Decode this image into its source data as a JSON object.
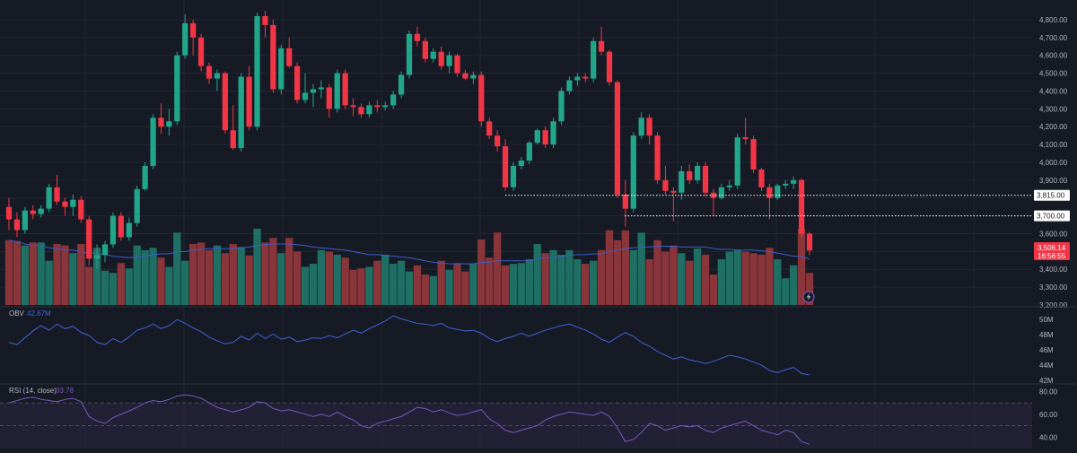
{
  "colors": {
    "background": "#161a25",
    "grid": "#232734",
    "bull": "#22a68a",
    "bear": "#f23645",
    "bull_vol": "#1f6f64",
    "bear_vol": "#8a353a",
    "vol_ma": "#3d5ccc",
    "obv": "#3f63d8",
    "rsi": "#7e57c2",
    "rsi_band": "#2a2540",
    "axis_text": "#b2b5be",
    "level_line": "#ffffff"
  },
  "price_axis": {
    "ticks": [
      "4,800.00",
      "4,700.00",
      "4,600.00",
      "4,500.00",
      "4,400.00",
      "4,300.00",
      "4,200.00",
      "4,100.00",
      "4,000.00",
      "3,900.00",
      "3,600.00",
      "3,400.00",
      "3,300.00",
      "3,200.00"
    ]
  },
  "levels": [
    {
      "price": 3815,
      "label": "3,815.00"
    },
    {
      "price": 3700,
      "label": "3,700.00"
    }
  ],
  "last_price": {
    "value": "3,506.14",
    "countdown": "16:56:55"
  },
  "obv_pane": {
    "label": "OBV",
    "value": "42.67M",
    "ticks": [
      "50M",
      "48M",
      "46M",
      "44M",
      "42M"
    ]
  },
  "rsi_pane": {
    "label": "RSI (14, close)",
    "value": "33.78",
    "ticks": [
      "80.00",
      "60.00",
      "40.00"
    ]
  },
  "chart_data": {
    "type": "candlestick",
    "y_range": [
      3200,
      4850
    ],
    "candles": [
      [
        3750,
        3800,
        3620,
        3680
      ],
      [
        3680,
        3720,
        3580,
        3620
      ],
      [
        3620,
        3750,
        3600,
        3730
      ],
      [
        3730,
        3760,
        3680,
        3710
      ],
      [
        3710,
        3760,
        3690,
        3740
      ],
      [
        3740,
        3880,
        3720,
        3860
      ],
      [
        3860,
        3930,
        3760,
        3780
      ],
      [
        3780,
        3800,
        3700,
        3750
      ],
      [
        3750,
        3820,
        3700,
        3790
      ],
      [
        3790,
        3810,
        3660,
        3680
      ],
      [
        3680,
        3700,
        3420,
        3460
      ],
      [
        3460,
        3540,
        3400,
        3480
      ],
      [
        3480,
        3560,
        3440,
        3540
      ],
      [
        3540,
        3720,
        3520,
        3700
      ],
      [
        3700,
        3720,
        3560,
        3580
      ],
      [
        3580,
        3690,
        3560,
        3660
      ],
      [
        3660,
        3870,
        3640,
        3850
      ],
      [
        3850,
        4000,
        3840,
        3980
      ],
      [
        3980,
        4270,
        3960,
        4250
      ],
      [
        4250,
        4330,
        4160,
        4200
      ],
      [
        4200,
        4300,
        4150,
        4230
      ],
      [
        4230,
        4620,
        4210,
        4600
      ],
      [
        4600,
        4830,
        4580,
        4780
      ],
      [
        4780,
        4800,
        4600,
        4700
      ],
      [
        4700,
        4720,
        4510,
        4540
      ],
      [
        4540,
        4560,
        4440,
        4470
      ],
      [
        4470,
        4520,
        4400,
        4500
      ],
      [
        4500,
        4510,
        4160,
        4180
      ],
      [
        4180,
        4320,
        4070,
        4080
      ],
      [
        4080,
        4500,
        4060,
        4480
      ],
      [
        4480,
        4540,
        4180,
        4200
      ],
      [
        4200,
        4840,
        4180,
        4820
      ],
      [
        4820,
        4850,
        4700,
        4770
      ],
      [
        4770,
        4800,
        4390,
        4410
      ],
      [
        4410,
        4660,
        4380,
        4640
      ],
      [
        4640,
        4700,
        4530,
        4540
      ],
      [
        4540,
        4560,
        4330,
        4350
      ],
      [
        4350,
        4500,
        4330,
        4390
      ],
      [
        4390,
        4440,
        4310,
        4410
      ],
      [
        4410,
        4460,
        4360,
        4420
      ],
      [
        4420,
        4440,
        4250,
        4300
      ],
      [
        4300,
        4520,
        4280,
        4500
      ],
      [
        4500,
        4520,
        4300,
        4320
      ],
      [
        4320,
        4360,
        4260,
        4310
      ],
      [
        4310,
        4330,
        4250,
        4270
      ],
      [
        4270,
        4340,
        4250,
        4320
      ],
      [
        4320,
        4350,
        4280,
        4310
      ],
      [
        4310,
        4340,
        4290,
        4320
      ],
      [
        4320,
        4400,
        4300,
        4380
      ],
      [
        4380,
        4510,
        4360,
        4490
      ],
      [
        4490,
        4740,
        4470,
        4720
      ],
      [
        4720,
        4760,
        4650,
        4680
      ],
      [
        4680,
        4700,
        4560,
        4580
      ],
      [
        4580,
        4640,
        4560,
        4620
      ],
      [
        4620,
        4650,
        4520,
        4540
      ],
      [
        4540,
        4620,
        4500,
        4600
      ],
      [
        4600,
        4610,
        4480,
        4500
      ],
      [
        4500,
        4520,
        4460,
        4470
      ],
      [
        4470,
        4510,
        4440,
        4490
      ],
      [
        4490,
        4510,
        4200,
        4230
      ],
      [
        4230,
        4250,
        4130,
        4150
      ],
      [
        4150,
        4180,
        4060,
        4090
      ],
      [
        4090,
        4130,
        3840,
        3860
      ],
      [
        3860,
        4000,
        3840,
        3980
      ],
      [
        3980,
        4030,
        3960,
        4010
      ],
      [
        4010,
        4120,
        3990,
        4110
      ],
      [
        4110,
        4190,
        4100,
        4180
      ],
      [
        4180,
        4200,
        4080,
        4100
      ],
      [
        4100,
        4250,
        4080,
        4230
      ],
      [
        4230,
        4420,
        4210,
        4400
      ],
      [
        4400,
        4480,
        4380,
        4460
      ],
      [
        4460,
        4500,
        4430,
        4480
      ],
      [
        4480,
        4500,
        4450,
        4470
      ],
      [
        4470,
        4700,
        4450,
        4680
      ],
      [
        4680,
        4760,
        4600,
        4620
      ],
      [
        4620,
        4630,
        4430,
        4450
      ],
      [
        4450,
        4460,
        3800,
        3820
      ],
      [
        3820,
        3900,
        3640,
        3740
      ],
      [
        3740,
        4170,
        3720,
        4150
      ],
      [
        4150,
        4280,
        4130,
        4250
      ],
      [
        4250,
        4270,
        4100,
        4150
      ],
      [
        4150,
        4170,
        3880,
        3900
      ],
      [
        3900,
        3980,
        3820,
        3840
      ],
      [
        3840,
        3860,
        3670,
        3830
      ],
      [
        3830,
        3980,
        3790,
        3950
      ],
      [
        3950,
        3990,
        3880,
        3900
      ],
      [
        3900,
        4000,
        3880,
        3980
      ],
      [
        3980,
        4000,
        3810,
        3830
      ],
      [
        3830,
        3850,
        3700,
        3800
      ],
      [
        3800,
        3880,
        3790,
        3860
      ],
      [
        3860,
        3900,
        3840,
        3870
      ],
      [
        3870,
        4160,
        3850,
        4140
      ],
      [
        4140,
        4250,
        4100,
        4130
      ],
      [
        4130,
        4150,
        3940,
        3960
      ],
      [
        3960,
        3970,
        3840,
        3860
      ],
      [
        3860,
        3880,
        3680,
        3800
      ],
      [
        3800,
        3880,
        3790,
        3870
      ],
      [
        3870,
        3900,
        3850,
        3880
      ],
      [
        3880,
        3920,
        3850,
        3900
      ],
      [
        3900,
        3910,
        3580,
        3600
      ],
      [
        3600,
        3610,
        3480,
        3506
      ]
    ],
    "volume": [
      85,
      84,
      78,
      82,
      82,
      58,
      80,
      78,
      68,
      80,
      50,
      75,
      45,
      42,
      55,
      48,
      78,
      72,
      75,
      62,
      50,
      95,
      58,
      80,
      82,
      72,
      78,
      68,
      80,
      76,
      65,
      100,
      82,
      88,
      68,
      88,
      70,
      50,
      54,
      72,
      70,
      66,
      62,
      46,
      48,
      50,
      58,
      66,
      54,
      58,
      44,
      52,
      40,
      38,
      58,
      46,
      55,
      44,
      54,
      86,
      62,
      95,
      52,
      54,
      55,
      60,
      80,
      68,
      72,
      66,
      72,
      60,
      54,
      58,
      72,
      98,
      85,
      98,
      72,
      95,
      60,
      85,
      70,
      78,
      68,
      58,
      74,
      66,
      40,
      60,
      70,
      72,
      70,
      68,
      66,
      75,
      60,
      35,
      52,
      100,
      42
    ],
    "volume_ma": [
      85,
      83,
      80,
      78,
      78,
      75,
      74,
      72,
      72,
      70,
      68,
      68,
      66,
      64,
      63,
      62,
      63,
      64,
      66,
      67,
      67,
      70,
      70,
      72,
      73,
      74,
      74,
      74,
      74,
      75,
      76,
      78,
      79,
      80,
      80,
      80,
      79,
      78,
      76,
      75,
      74,
      73,
      72,
      70,
      68,
      66,
      66,
      65,
      64,
      63,
      62,
      60,
      58,
      56,
      55,
      54,
      54,
      54,
      54,
      56,
      56,
      58,
      58,
      58,
      58,
      58,
      60,
      62,
      62,
      64,
      65,
      66,
      66,
      67,
      67,
      70,
      72,
      74,
      75,
      76,
      76,
      77,
      77,
      77,
      76,
      76,
      76,
      76,
      74,
      73,
      73,
      72,
      72,
      72,
      71,
      70,
      68,
      66,
      64,
      64,
      60
    ],
    "obv": [
      47.0,
      46.7,
      47.6,
      48.5,
      49.2,
      48.6,
      49.4,
      48.8,
      49.1,
      48.3,
      47.9,
      47.0,
      46.7,
      47.5,
      47.0,
      47.7,
      48.6,
      48.9,
      49.4,
      48.8,
      49.2,
      50.0,
      49.5,
      48.9,
      48.4,
      47.7,
      47.2,
      46.8,
      47.0,
      47.8,
      47.3,
      48.2,
      47.5,
      48.1,
      47.4,
      47.7,
      47.1,
      47.3,
      47.6,
      47.5,
      47.9,
      47.6,
      48.1,
      48.6,
      48.2,
      48.8,
      49.3,
      49.8,
      50.5,
      50.1,
      49.8,
      49.5,
      49.4,
      49.2,
      49.5,
      48.9,
      48.7,
      48.5,
      48.6,
      48.2,
      47.5,
      47.1,
      47.5,
      47.8,
      48.2,
      47.8,
      48.2,
      48.6,
      48.9,
      49.2,
      49.4,
      49.0,
      48.6,
      48.1,
      47.4,
      47.0,
      47.7,
      48.3,
      47.8,
      47.0,
      46.5,
      45.8,
      45.3,
      44.8,
      45.1,
      44.7,
      44.5,
      44.2,
      44.5,
      44.9,
      45.3,
      45.1,
      44.8,
      44.4,
      44.0,
      43.3,
      43.0,
      43.4,
      43.7,
      42.9,
      42.7
    ],
    "rsi": [
      70,
      72,
      74,
      75,
      73,
      72,
      71,
      73,
      74,
      71,
      58,
      54,
      52,
      57,
      60,
      63,
      66,
      70,
      72,
      71,
      73,
      76,
      77,
      76,
      74,
      70,
      66,
      64,
      62,
      64,
      66,
      71,
      70,
      65,
      63,
      64,
      62,
      60,
      58,
      60,
      58,
      62,
      58,
      55,
      50,
      48,
      52,
      54,
      56,
      58,
      62,
      66,
      65,
      62,
      64,
      61,
      59,
      60,
      62,
      64,
      56,
      52,
      46,
      44,
      46,
      48,
      50,
      55,
      58,
      60,
      62,
      61,
      60,
      59,
      62,
      58,
      48,
      36,
      38,
      44,
      52,
      50,
      46,
      48,
      50,
      49,
      50,
      46,
      44,
      48,
      50,
      52,
      54,
      50,
      46,
      44,
      42,
      46,
      44,
      36,
      33.78
    ]
  }
}
